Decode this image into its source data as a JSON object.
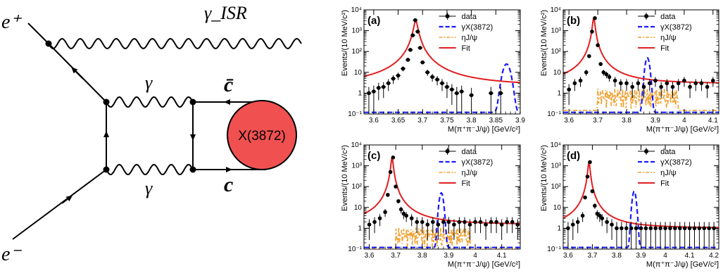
{
  "diagram": {
    "labels": {
      "e_plus": "e⁺",
      "e_minus": "e⁻",
      "gamma_isr": "γ_ISR",
      "gamma_top": "γ",
      "gamma_bottom": "γ",
      "cbar": "c̄",
      "c": "c",
      "blob": "X(3872)"
    },
    "blob_color": "#f05050"
  },
  "legend": {
    "data": "data",
    "signal": "γX(3872)",
    "bkg": "ηJ/ψ",
    "fit": "Fit"
  },
  "colors": {
    "data": "#000000",
    "signal": "#1a1aff",
    "bkg": "#f0a030",
    "fit": "#e02020"
  },
  "chart_data": [
    {
      "panel": "(a)",
      "type": "line",
      "yscale": "log",
      "ylabel": "Events/(10 MeV/c²)",
      "xlabel": "M(π⁺π⁻J/ψ) [GeV/c²]",
      "xlim": [
        3.58,
        3.9
      ],
      "ylim": [
        0.1,
        10000
      ],
      "xticks": [
        "3.6",
        "3.65",
        "3.7",
        "3.75",
        "3.8",
        "3.85",
        "3.9"
      ],
      "yticks": [
        "10⁻¹",
        "1",
        "10",
        "10²",
        "10³",
        "10⁴"
      ],
      "peak_x": 3.686,
      "peak_height": 3000,
      "peak_width": 0.004,
      "baseline": 2.2,
      "bkg_level": 0.13,
      "signal_x": 3.872,
      "signal_height": 25,
      "signal_width": 0.006,
      "data_x": [
        3.59,
        3.6,
        3.61,
        3.62,
        3.63,
        3.64,
        3.65,
        3.66,
        3.67,
        3.675,
        3.68,
        3.685,
        3.69,
        3.695,
        3.7,
        3.71,
        3.72,
        3.73,
        3.74,
        3.75,
        3.76,
        3.77,
        3.78,
        3.8,
        3.84,
        3.86
      ],
      "data_y": [
        1.0,
        1.2,
        1.8,
        2.0,
        3.0,
        5.0,
        7.0,
        15,
        40,
        120,
        600,
        3200,
        900,
        150,
        30,
        10,
        6,
        4.5,
        3.0,
        2.0,
        1.5,
        1.0,
        1.2,
        0.8,
        1.0,
        1.0
      ]
    },
    {
      "panel": "(b)",
      "type": "line",
      "yscale": "log",
      "ylabel": "Events/(10 MeV/c²)",
      "xlabel": "M(π⁺π⁻J/ψ) [GeV/c²]",
      "xlim": [
        3.58,
        4.12
      ],
      "ylim": [
        0.1,
        10000
      ],
      "xticks": [
        "3.6",
        "3.7",
        "3.8",
        "3.9",
        "4",
        "4.1"
      ],
      "yticks": [
        "10⁻¹",
        "1",
        "10",
        "10²",
        "10³",
        "10⁴"
      ],
      "peak_x": 3.686,
      "peak_height": 4000,
      "peak_width": 0.004,
      "baseline": 2.8,
      "bkg_level": 0.6,
      "signal_x": 3.872,
      "signal_height": 50,
      "signal_width": 0.006,
      "data_x": [
        3.6,
        3.62,
        3.64,
        3.66,
        3.67,
        3.68,
        3.69,
        3.7,
        3.71,
        3.72,
        3.73,
        3.74,
        3.76,
        3.78,
        3.8,
        3.82,
        3.84,
        3.86,
        3.88,
        3.9,
        3.92,
        3.94,
        3.96,
        3.98,
        4.0,
        4.02,
        4.04,
        4.06,
        4.08,
        4.1
      ],
      "data_y": [
        1.5,
        3.0,
        4.0,
        10,
        60,
        900,
        4000,
        200,
        25,
        10,
        8,
        6,
        4,
        3,
        3,
        2,
        3,
        2,
        3,
        4,
        2,
        3,
        2,
        3,
        4,
        2,
        3,
        3,
        2,
        4
      ]
    },
    {
      "panel": "(c)",
      "type": "line",
      "yscale": "log",
      "ylabel": "Events/(10 MeV/c²)",
      "xlabel": "M(π⁺π⁻J/ψ) [GeV/c²]",
      "xlim": [
        3.58,
        4.17
      ],
      "ylim": [
        0.1,
        10000
      ],
      "xticks": [
        "3.6",
        "3.7",
        "3.8",
        "3.9",
        "4",
        "4.1"
      ],
      "yticks": [
        "10⁻¹",
        "1",
        "10",
        "10²",
        "10³",
        "10⁴"
      ],
      "peak_x": 3.686,
      "peak_height": 2500,
      "peak_width": 0.004,
      "baseline": 1.5,
      "bkg_level": 0.4,
      "signal_x": 3.872,
      "signal_height": 50,
      "signal_width": 0.006,
      "data_x": [
        3.6,
        3.62,
        3.64,
        3.66,
        3.67,
        3.68,
        3.69,
        3.7,
        3.71,
        3.72,
        3.73,
        3.74,
        3.76,
        3.78,
        3.8,
        3.82,
        3.84,
        3.86,
        3.88,
        3.9,
        3.92,
        3.94,
        3.96,
        3.98,
        4.0,
        4.02,
        4.04,
        4.06,
        4.08,
        4.1,
        4.12,
        4.14,
        4.16
      ],
      "data_y": [
        1.5,
        2.0,
        3.0,
        6,
        40,
        500,
        2500,
        100,
        20,
        8,
        5,
        4,
        3,
        2,
        2,
        1.5,
        2,
        1.5,
        2,
        2,
        1.5,
        2,
        2,
        1.5,
        2,
        2,
        1.5,
        2,
        2,
        1.5,
        2,
        2,
        1.5
      ]
    },
    {
      "panel": "(d)",
      "type": "line",
      "yscale": "log",
      "ylabel": "Events/(10 MeV/c²)",
      "xlabel": "M(π⁺π⁻J/ψ) [GeV/c²]",
      "xlim": [
        3.58,
        4.22
      ],
      "ylim": [
        0.1,
        10000
      ],
      "xticks": [
        "3.6",
        "3.7",
        "3.8",
        "3.9",
        "4",
        "4.1",
        "4.2"
      ],
      "yticks": [
        "10⁻¹",
        "1",
        "10",
        "10²",
        "10³",
        "10⁴"
      ],
      "peak_x": 3.686,
      "peak_height": 1500,
      "peak_width": 0.004,
      "baseline": 1.0,
      "bkg_level": 0.1,
      "signal_x": 3.872,
      "signal_height": 60,
      "signal_width": 0.006,
      "data_x": [
        3.6,
        3.62,
        3.64,
        3.66,
        3.67,
        3.68,
        3.69,
        3.7,
        3.71,
        3.72,
        3.73,
        3.74,
        3.76,
        3.78,
        3.8,
        3.82,
        3.84,
        3.86,
        3.88,
        3.9,
        3.92,
        3.94,
        3.96,
        3.98,
        4.0,
        4.02,
        4.04,
        4.06,
        4.08,
        4.1,
        4.12,
        4.14,
        4.16,
        4.18,
        4.2
      ],
      "data_y": [
        1.0,
        1.5,
        2.0,
        4,
        30,
        300,
        1500,
        60,
        12,
        5,
        4,
        3,
        2,
        1.5,
        1.0,
        1.0,
        1.0,
        1.0,
        1.0,
        1.0,
        1.0,
        1.0,
        1.0,
        1.0,
        1.0,
        1.0,
        1.0,
        1.0,
        1.0,
        1.0,
        1.0,
        1.0,
        1.0,
        1.0,
        1.0
      ]
    }
  ]
}
